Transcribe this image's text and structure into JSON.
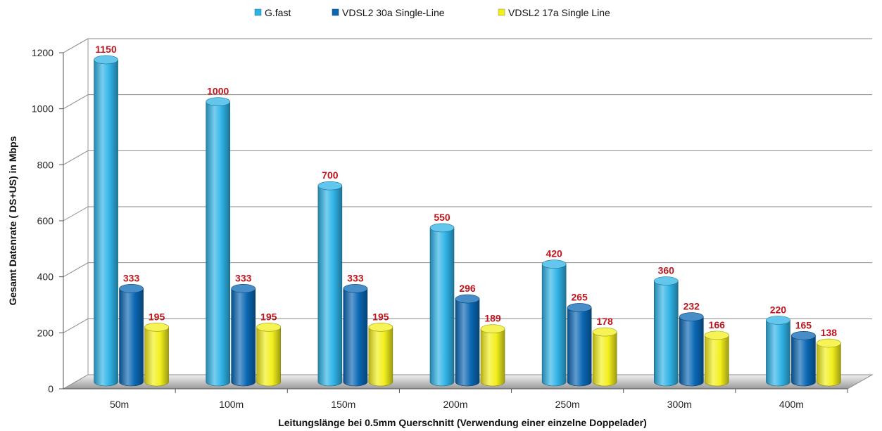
{
  "chart_data": {
    "type": "bar",
    "title": "",
    "categories": [
      "50m",
      "100m",
      "150m",
      "200m",
      "250m",
      "300m",
      "400m"
    ],
    "series": [
      {
        "name": "G.fast",
        "color": "#2fb3e6",
        "values": [
          1150,
          1000,
          700,
          550,
          420,
          360,
          220
        ]
      },
      {
        "name": "VDSL2 30a Single-Line",
        "color": "#0a67b4",
        "values": [
          333,
          333,
          333,
          296,
          265,
          232,
          165
        ]
      },
      {
        "name": "VDSL2 17a Single Line",
        "color": "#f2ef1c",
        "values": [
          195,
          195,
          195,
          189,
          178,
          166,
          138
        ]
      }
    ],
    "xlabel": "Leitungslänge bei 0.5mm Querschnitt  (Verwendung einer einzelne Doppelader)",
    "ylabel": "Gesamt Datenrate ( DS+US) in Mbps",
    "ylim": [
      0,
      1200
    ],
    "yticks": [
      0,
      200,
      400,
      600,
      800,
      1000,
      1200
    ],
    "grid": true,
    "legend_position": "top-center",
    "style": "3d-cylinder"
  }
}
